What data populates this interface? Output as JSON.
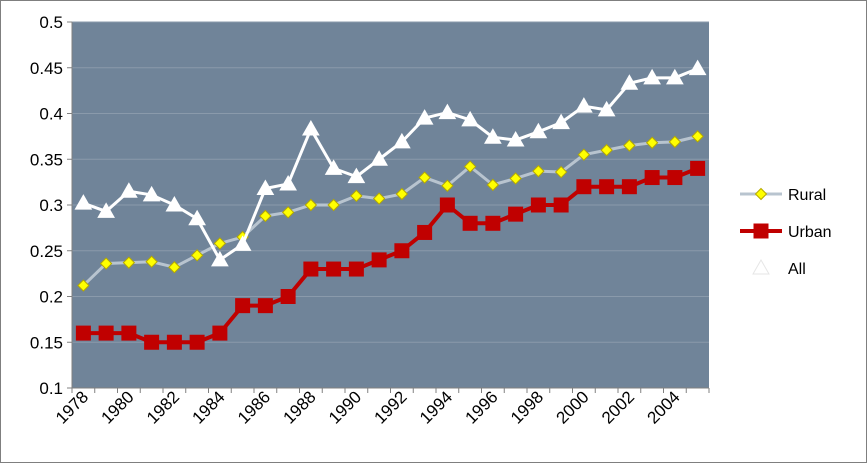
{
  "chart_data": {
    "type": "line",
    "title": "",
    "xlabel": "",
    "ylabel": "",
    "x": [
      1978,
      1979,
      1980,
      1981,
      1982,
      1983,
      1984,
      1985,
      1986,
      1987,
      1988,
      1989,
      1990,
      1991,
      1992,
      1993,
      1994,
      1995,
      1996,
      1997,
      1998,
      1999,
      2000,
      2001,
      2002,
      2003,
      2004,
      2005
    ],
    "x_tick_labels": [
      "1978",
      "1980",
      "1982",
      "1984",
      "1986",
      "1988",
      "1990",
      "1992",
      "1994",
      "1996",
      "1998",
      "2000",
      "2002",
      "2004"
    ],
    "y_tick_labels": [
      "0.1",
      "0.15",
      "0.2",
      "0.25",
      "0.3",
      "0.35",
      "0.4",
      "0.45",
      "0.5"
    ],
    "ylim": [
      0.1,
      0.5
    ],
    "grid": "horizontal",
    "plot_background": "#708499",
    "legend_position": "right",
    "series": [
      {
        "name": "Rural",
        "color": "#b8c4cf",
        "marker": "diamond",
        "marker_color": "#ffff00",
        "values": [
          0.212,
          0.236,
          0.237,
          0.238,
          0.232,
          0.245,
          0.258,
          0.265,
          0.288,
          0.292,
          0.3,
          0.3,
          0.31,
          0.307,
          0.312,
          0.33,
          0.321,
          0.342,
          0.322,
          0.329,
          0.337,
          0.336,
          0.355,
          0.36,
          0.365,
          0.368,
          0.369,
          0.375
        ]
      },
      {
        "name": "Urban",
        "color": "#c00000",
        "marker": "square",
        "marker_color": "#c00000",
        "values": [
          0.16,
          0.16,
          0.16,
          0.15,
          0.15,
          0.15,
          0.16,
          0.19,
          0.19,
          0.2,
          0.23,
          0.23,
          0.23,
          0.24,
          0.25,
          0.27,
          0.3,
          0.28,
          0.28,
          0.29,
          0.3,
          0.3,
          0.32,
          0.32,
          0.32,
          0.33,
          0.33,
          0.34
        ]
      },
      {
        "name": "All",
        "color": "#ffffff",
        "marker": "triangle",
        "marker_color": "#ffffff",
        "values": [
          0.302,
          0.293,
          0.315,
          0.311,
          0.3,
          0.285,
          0.24,
          0.257,
          0.318,
          0.323,
          0.383,
          0.34,
          0.331,
          0.35,
          0.369,
          0.395,
          0.401,
          0.393,
          0.374,
          0.371,
          0.38,
          0.39,
          0.408,
          0.404,
          0.433,
          0.439,
          0.439,
          0.449
        ]
      }
    ]
  }
}
